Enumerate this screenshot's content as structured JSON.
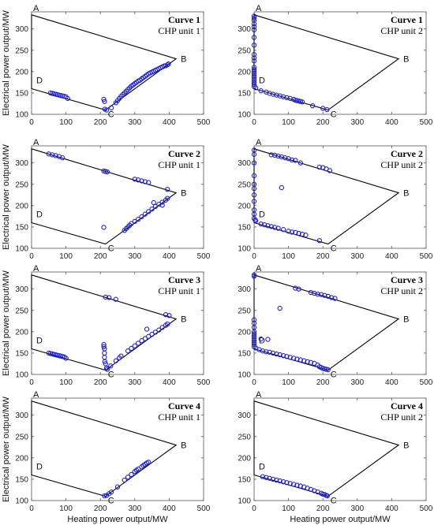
{
  "axis_labels": {
    "x": "Heating power output/MW",
    "y": "Electrical power output/MW"
  },
  "chart_data": [
    {
      "type": "scatter",
      "curve": "Curve 1",
      "unit": "CHP unit 1",
      "xlim": [
        0,
        500
      ],
      "ylim": [
        100,
        340
      ],
      "xticks": [
        0,
        100,
        200,
        300,
        400,
        500
      ],
      "yticks": [
        100,
        150,
        200,
        250,
        300
      ],
      "region": {
        "A": [
          0,
          333
        ],
        "B": [
          420,
          230
        ],
        "C": [
          215,
          110
        ],
        "D": [
          0,
          160
        ]
      },
      "points": [
        [
          55,
          150
        ],
        [
          60,
          149
        ],
        [
          65,
          148
        ],
        [
          70,
          147
        ],
        [
          75,
          146
        ],
        [
          80,
          145
        ],
        [
          85,
          144
        ],
        [
          90,
          143
        ],
        [
          95,
          142
        ],
        [
          100,
          141
        ],
        [
          105,
          137
        ],
        [
          210,
          135
        ],
        [
          212,
          130
        ],
        [
          213,
          112
        ],
        [
          218,
          110
        ],
        [
          232,
          115
        ],
        [
          245,
          127
        ],
        [
          250,
          132
        ],
        [
          255,
          137
        ],
        [
          260,
          142
        ],
        [
          265,
          146
        ],
        [
          270,
          150
        ],
        [
          275,
          154
        ],
        [
          280,
          158
        ],
        [
          285,
          162
        ],
        [
          290,
          166
        ],
        [
          295,
          169
        ],
        [
          300,
          172
        ],
        [
          305,
          175
        ],
        [
          310,
          178
        ],
        [
          315,
          180
        ],
        [
          320,
          183
        ],
        [
          325,
          186
        ],
        [
          330,
          189
        ],
        [
          335,
          192
        ],
        [
          340,
          195
        ],
        [
          345,
          197
        ],
        [
          350,
          199
        ],
        [
          355,
          201
        ],
        [
          360,
          203
        ],
        [
          365,
          205
        ],
        [
          370,
          207
        ],
        [
          375,
          209
        ],
        [
          380,
          211
        ],
        [
          385,
          213
        ],
        [
          390,
          214
        ],
        [
          395,
          216
        ],
        [
          398,
          218
        ]
      ]
    },
    {
      "type": "scatter",
      "curve": "Curve 1",
      "unit": "CHP unit 2",
      "xlim": [
        0,
        500
      ],
      "ylim": [
        100,
        340
      ],
      "xticks": [
        0,
        100,
        200,
        300,
        400,
        500
      ],
      "yticks": [
        100,
        150,
        200,
        250,
        300
      ],
      "region": {
        "A": [
          0,
          333
        ],
        "B": [
          420,
          230
        ],
        "C": [
          215,
          110
        ],
        "D": [
          0,
          160
        ]
      },
      "points": [
        [
          0,
          330
        ],
        [
          0,
          325
        ],
        [
          0,
          320
        ],
        [
          0,
          312
        ],
        [
          0,
          305
        ],
        [
          0,
          298
        ],
        [
          0,
          280
        ],
        [
          0,
          262
        ],
        [
          0,
          240
        ],
        [
          0,
          232
        ],
        [
          0,
          225
        ],
        [
          0,
          210
        ],
        [
          0,
          205
        ],
        [
          0,
          200
        ],
        [
          0,
          195
        ],
        [
          0,
          190
        ],
        [
          0,
          185
        ],
        [
          0,
          180
        ],
        [
          0,
          175
        ],
        [
          0,
          170
        ],
        [
          0,
          165
        ],
        [
          5,
          162
        ],
        [
          20,
          155
        ],
        [
          35,
          152
        ],
        [
          45,
          149
        ],
        [
          55,
          147
        ],
        [
          65,
          145
        ],
        [
          75,
          143
        ],
        [
          85,
          141
        ],
        [
          95,
          139
        ],
        [
          105,
          137
        ],
        [
          115,
          135
        ],
        [
          120,
          133
        ],
        [
          125,
          132
        ],
        [
          130,
          131
        ],
        [
          135,
          130
        ],
        [
          140,
          129
        ],
        [
          170,
          120
        ],
        [
          200,
          114
        ],
        [
          212,
          111
        ]
      ]
    },
    {
      "type": "scatter",
      "curve": "Curve 2",
      "unit": "CHP unit 1",
      "xlim": [
        0,
        500
      ],
      "ylim": [
        100,
        340
      ],
      "xticks": [
        0,
        100,
        200,
        300,
        400,
        500
      ],
      "yticks": [
        100,
        150,
        200,
        250,
        300
      ],
      "region": {
        "A": [
          0,
          333
        ],
        "B": [
          420,
          230
        ],
        "C": [
          215,
          110
        ],
        "D": [
          0,
          160
        ]
      },
      "points": [
        [
          50,
          321
        ],
        [
          60,
          319
        ],
        [
          70,
          317
        ],
        [
          80,
          315
        ],
        [
          90,
          312
        ],
        [
          210,
          281
        ],
        [
          215,
          280
        ],
        [
          220,
          279
        ],
        [
          300,
          262
        ],
        [
          310,
          260
        ],
        [
          320,
          258
        ],
        [
          330,
          256
        ],
        [
          340,
          254
        ],
        [
          395,
          238
        ],
        [
          210,
          149
        ],
        [
          270,
          142
        ],
        [
          275,
          146
        ],
        [
          280,
          150
        ],
        [
          285,
          154
        ],
        [
          290,
          158
        ],
        [
          300,
          163
        ],
        [
          310,
          168
        ],
        [
          320,
          174
        ],
        [
          330,
          180
        ],
        [
          340,
          186
        ],
        [
          350,
          192
        ],
        [
          360,
          198
        ],
        [
          370,
          203
        ],
        [
          380,
          208
        ],
        [
          390,
          213
        ],
        [
          395,
          217
        ],
        [
          355,
          207
        ],
        [
          380,
          201
        ]
      ]
    },
    {
      "type": "scatter",
      "curve": "Curve 2",
      "unit": "CHP unit 2",
      "xlim": [
        0,
        500
      ],
      "ylim": [
        100,
        340
      ],
      "xticks": [
        0,
        100,
        200,
        300,
        400,
        500
      ],
      "yticks": [
        100,
        150,
        200,
        250,
        300
      ],
      "region": {
        "A": [
          0,
          333
        ],
        "B": [
          420,
          230
        ],
        "C": [
          215,
          110
        ],
        "D": [
          0,
          160
        ]
      },
      "points": [
        [
          0,
          330
        ],
        [
          0,
          320
        ],
        [
          0,
          300
        ],
        [
          0,
          270
        ],
        [
          0,
          250
        ],
        [
          0,
          240
        ],
        [
          0,
          225
        ],
        [
          0,
          210
        ],
        [
          0,
          190
        ],
        [
          0,
          180
        ],
        [
          0,
          170
        ],
        [
          3,
          166
        ],
        [
          5,
          165
        ],
        [
          50,
          319
        ],
        [
          60,
          318
        ],
        [
          70,
          316
        ],
        [
          80,
          314
        ],
        [
          90,
          312
        ],
        [
          100,
          310
        ],
        [
          110,
          307
        ],
        [
          120,
          306
        ],
        [
          135,
          300
        ],
        [
          190,
          290
        ],
        [
          200,
          289
        ],
        [
          210,
          286
        ],
        [
          220,
          282
        ],
        [
          80,
          242
        ],
        [
          20,
          157
        ],
        [
          30,
          155
        ],
        [
          40,
          153
        ],
        [
          50,
          151
        ],
        [
          60,
          149
        ],
        [
          70,
          147
        ],
        [
          85,
          144
        ],
        [
          100,
          140
        ],
        [
          110,
          138
        ],
        [
          120,
          137
        ],
        [
          130,
          135
        ],
        [
          140,
          133
        ],
        [
          150,
          131
        ],
        [
          190,
          118
        ]
      ]
    },
    {
      "type": "scatter",
      "curve": "Curve 3",
      "unit": "CHP unit 1",
      "xlim": [
        0,
        500
      ],
      "ylim": [
        100,
        340
      ],
      "xticks": [
        0,
        100,
        200,
        300,
        400,
        500
      ],
      "yticks": [
        100,
        150,
        200,
        250,
        300
      ],
      "region": {
        "A": [
          0,
          333
        ],
        "B": [
          420,
          230
        ],
        "C": [
          215,
          110
        ],
        "D": [
          0,
          160
        ]
      },
      "points": [
        [
          50,
          150
        ],
        [
          55,
          149
        ],
        [
          60,
          148
        ],
        [
          65,
          147
        ],
        [
          70,
          146
        ],
        [
          75,
          145
        ],
        [
          80,
          144
        ],
        [
          85,
          143
        ],
        [
          90,
          142
        ],
        [
          95,
          141
        ],
        [
          100,
          138
        ],
        [
          215,
          281
        ],
        [
          225,
          280
        ],
        [
          245,
          276
        ],
        [
          390,
          240
        ],
        [
          400,
          238
        ],
        [
          335,
          206
        ],
        [
          210,
          170
        ],
        [
          210,
          165
        ],
        [
          212,
          160
        ],
        [
          212,
          150
        ],
        [
          212,
          140
        ],
        [
          213,
          130
        ],
        [
          215,
          125
        ],
        [
          218,
          115
        ],
        [
          220,
          112
        ],
        [
          230,
          120
        ],
        [
          245,
          132
        ],
        [
          255,
          139
        ],
        [
          260,
          143
        ],
        [
          280,
          155
        ],
        [
          290,
          161
        ],
        [
          300,
          167
        ],
        [
          310,
          173
        ],
        [
          320,
          179
        ],
        [
          330,
          184
        ],
        [
          340,
          189
        ],
        [
          350,
          194
        ],
        [
          360,
          199
        ],
        [
          370,
          204
        ],
        [
          380,
          210
        ],
        [
          390,
          215
        ],
        [
          395,
          218
        ]
      ]
    },
    {
      "type": "scatter",
      "curve": "Curve 3",
      "unit": "CHP unit 2",
      "xlim": [
        0,
        500
      ],
      "ylim": [
        100,
        340
      ],
      "xticks": [
        0,
        100,
        200,
        300,
        400,
        500
      ],
      "yticks": [
        100,
        150,
        200,
        250,
        300
      ],
      "region": {
        "A": [
          0,
          333
        ],
        "B": [
          420,
          230
        ],
        "C": [
          215,
          110
        ],
        "D": [
          0,
          160
        ]
      },
      "points": [
        [
          0,
          333
        ],
        [
          0,
          330
        ],
        [
          0,
          228
        ],
        [
          0,
          220
        ],
        [
          0,
          210
        ],
        [
          0,
          200
        ],
        [
          0,
          195
        ],
        [
          0,
          190
        ],
        [
          0,
          185
        ],
        [
          0,
          180
        ],
        [
          0,
          175
        ],
        [
          0,
          170
        ],
        [
          0,
          165
        ],
        [
          120,
          302
        ],
        [
          130,
          300
        ],
        [
          165,
          292
        ],
        [
          175,
          290
        ],
        [
          185,
          288
        ],
        [
          195,
          287
        ],
        [
          205,
          285
        ],
        [
          215,
          283
        ],
        [
          225,
          280
        ],
        [
          235,
          278
        ],
        [
          75,
          255
        ],
        [
          20,
          183
        ],
        [
          40,
          182
        ],
        [
          5,
          162
        ],
        [
          15,
          158
        ],
        [
          25,
          155
        ],
        [
          35,
          153
        ],
        [
          45,
          152
        ],
        [
          55,
          150
        ],
        [
          65,
          148
        ],
        [
          75,
          146
        ],
        [
          85,
          144
        ],
        [
          95,
          142
        ],
        [
          105,
          140
        ],
        [
          115,
          138
        ],
        [
          125,
          136
        ],
        [
          135,
          134
        ],
        [
          145,
          132
        ],
        [
          155,
          130
        ],
        [
          165,
          128
        ],
        [
          175,
          126
        ],
        [
          185,
          122
        ],
        [
          190,
          118
        ],
        [
          195,
          116
        ],
        [
          200,
          114
        ],
        [
          205,
          113
        ],
        [
          210,
          112
        ],
        [
          215,
          111
        ]
      ]
    },
    {
      "type": "scatter",
      "curve": "Curve 4",
      "unit": "CHP unit 1",
      "xlim": [
        0,
        500
      ],
      "ylim": [
        100,
        340
      ],
      "xticks": [
        0,
        100,
        200,
        300,
        400,
        500
      ],
      "yticks": [
        100,
        150,
        200,
        250,
        300
      ],
      "region": {
        "A": [
          0,
          333
        ],
        "B": [
          420,
          230
        ],
        "C": [
          215,
          110
        ],
        "D": [
          0,
          160
        ]
      },
      "points": [
        [
          212,
          111
        ],
        [
          218,
          112
        ],
        [
          225,
          116
        ],
        [
          232,
          120
        ],
        [
          250,
          132
        ],
        [
          270,
          148
        ],
        [
          280,
          155
        ],
        [
          290,
          161
        ],
        [
          300,
          168
        ],
        [
          305,
          171
        ],
        [
          310,
          174
        ],
        [
          320,
          179
        ],
        [
          325,
          182
        ],
        [
          330,
          185
        ],
        [
          335,
          188
        ],
        [
          340,
          190
        ]
      ]
    },
    {
      "type": "scatter",
      "curve": "Curve 4",
      "unit": "CHP unit 2",
      "xlim": [
        0,
        500
      ],
      "ylim": [
        100,
        340
      ],
      "xticks": [
        0,
        100,
        200,
        300,
        400,
        500
      ],
      "yticks": [
        100,
        150,
        200,
        250,
        300
      ],
      "region": {
        "A": [
          0,
          333
        ],
        "B": [
          420,
          230
        ],
        "C": [
          215,
          110
        ],
        "D": [
          0,
          160
        ]
      },
      "points": [
        [
          25,
          156
        ],
        [
          35,
          154
        ],
        [
          45,
          152
        ],
        [
          55,
          150
        ],
        [
          65,
          148
        ],
        [
          75,
          146
        ],
        [
          85,
          144
        ],
        [
          95,
          142
        ],
        [
          105,
          140
        ],
        [
          115,
          138
        ],
        [
          125,
          136
        ],
        [
          135,
          134
        ],
        [
          145,
          132
        ],
        [
          155,
          129
        ],
        [
          165,
          126
        ],
        [
          175,
          123
        ],
        [
          185,
          120
        ],
        [
          195,
          117
        ],
        [
          200,
          115
        ],
        [
          205,
          114
        ],
        [
          210,
          112
        ],
        [
          213,
          111
        ]
      ]
    }
  ],
  "colors": {
    "marker": "#1f1fd1",
    "region": "#000000",
    "axis": "#555555"
  }
}
